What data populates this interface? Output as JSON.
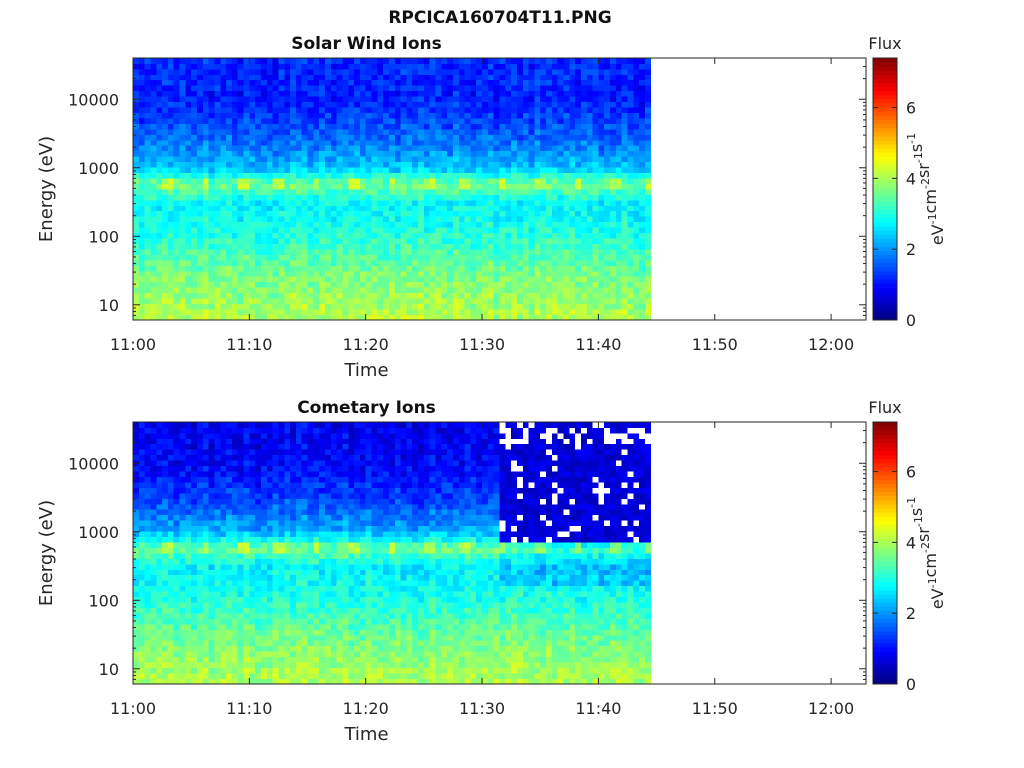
{
  "figure_title": "RPCICA160704T11.PNG",
  "chart_data": [
    {
      "type": "heatmap",
      "title": "Solar Wind Ions",
      "xlabel": "Time",
      "ylabel": "Energy (eV)",
      "y_scale": "log",
      "ylim": [
        6,
        40000
      ],
      "xlim": [
        "11:00",
        "12:03"
      ],
      "x_ticks": [
        "11:00",
        "11:10",
        "11:20",
        "11:30",
        "11:40",
        "11:50",
        "12:00"
      ],
      "y_ticks": [
        "10",
        "100",
        "1000",
        "10000"
      ],
      "data_end_time": "11:44.5",
      "sparse_from_time": null,
      "colorbar": {
        "title": "Flux",
        "label": "eV-1cm-2sr-1s-1",
        "label_base": [
          "eV",
          "cm",
          "sr",
          "s"
        ],
        "label_exp": [
          "-1",
          "-2",
          "-1",
          "-1"
        ],
        "range": [
          0,
          7.4
        ],
        "ticks": [
          "0",
          "2",
          "4",
          "6"
        ],
        "colormap": "jet"
      },
      "profile": [
        {
          "energy": 8,
          "flux": 4.0
        },
        {
          "energy": 30,
          "flux": 3.6
        },
        {
          "energy": 100,
          "flux": 3.0
        },
        {
          "energy": 300,
          "flux": 2.7
        },
        {
          "energy": 580,
          "flux": 3.6
        },
        {
          "energy": 1000,
          "flux": 2.3
        },
        {
          "energy": 3000,
          "flux": 1.6
        },
        {
          "energy": 10000,
          "flux": 1.1
        },
        {
          "energy": 40000,
          "flux": 1.2
        }
      ],
      "periodic_band": {
        "energy_range": [
          500,
          700
        ],
        "flux": 4.1,
        "period_min": 3.2
      }
    },
    {
      "type": "heatmap",
      "title": "Cometary Ions",
      "xlabel": "Time",
      "ylabel": "Energy (eV)",
      "y_scale": "log",
      "ylim": [
        6,
        40000
      ],
      "xlim": [
        "11:00",
        "12:03"
      ],
      "x_ticks": [
        "11:00",
        "11:10",
        "11:20",
        "11:30",
        "11:40",
        "11:50",
        "12:00"
      ],
      "y_ticks": [
        "10",
        "100",
        "1000",
        "10000"
      ],
      "data_end_time": "11:44.5",
      "sparse_from_time": "11:31.5",
      "colorbar": {
        "title": "Flux",
        "label": "eV-1cm-2sr-1s-1",
        "label_base": [
          "eV",
          "cm",
          "sr",
          "s"
        ],
        "label_exp": [
          "-1",
          "-2",
          "-1",
          "-1"
        ],
        "range": [
          0,
          7.4
        ],
        "ticks": [
          "0",
          "2",
          "4",
          "6"
        ],
        "colormap": "jet"
      },
      "profile": [
        {
          "energy": 8,
          "flux": 4.0
        },
        {
          "energy": 30,
          "flux": 3.6
        },
        {
          "energy": 100,
          "flux": 3.0
        },
        {
          "energy": 300,
          "flux": 2.7
        },
        {
          "energy": 580,
          "flux": 3.6
        },
        {
          "energy": 1000,
          "flux": 2.2
        },
        {
          "energy": 3000,
          "flux": 1.4
        },
        {
          "energy": 10000,
          "flux": 0.9
        },
        {
          "energy": 40000,
          "flux": 0.8
        }
      ],
      "periodic_band": {
        "energy_range": [
          500,
          700
        ],
        "flux": 4.1,
        "period_min": 3.2
      }
    }
  ]
}
